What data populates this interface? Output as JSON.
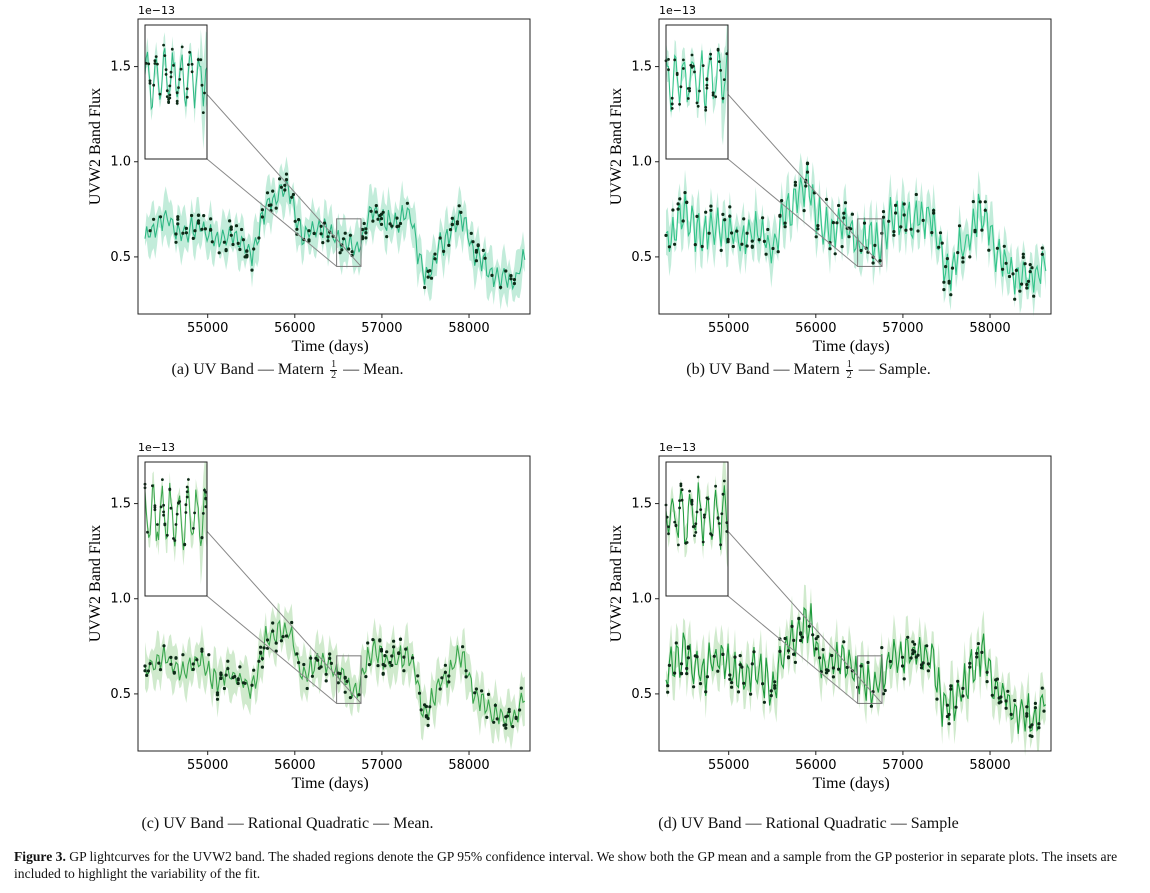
{
  "colors": {
    "mean_line": "#2fb884",
    "band": "#8fdcbb",
    "sample_line": "#33c48a",
    "sample_line_dark": "#1e9a3c",
    "band_rq": "#a9d9a4",
    "points": "#0d2a17"
  },
  "panels": [
    {
      "caption_pre": "(a)  UV Band — Matern",
      "caption_frac_num": "1",
      "caption_frac_den": "2",
      "caption_post": "— Mean.",
      "chart_data": {
        "type": "line",
        "title": "",
        "xlabel": "Time (days)",
        "ylabel": "UVW2 Band Flux",
        "offset_text": "1e−13",
        "xlim": [
          54200,
          58700
        ],
        "ylim": [
          0.2,
          1.75
        ],
        "xticks": [
          55000,
          56000,
          57000,
          58000
        ],
        "yticks": [
          0.5,
          1.0,
          1.5
        ],
        "ytick_labels": [
          "0.5",
          "1.0",
          "1.5"
        ],
        "inset_xlim": [
          56480,
          56760
        ],
        "inset_ylim": [
          0.45,
          0.7
        ],
        "series": [
          {
            "kind": "mean",
            "x": [
              54300,
              54500,
              54700,
              54900,
              55100,
              55300,
              55500,
              55700,
              55900,
              56100,
              56300,
              56500,
              56700,
              56900,
              57100,
              57300,
              57500,
              57700,
              57900,
              58100,
              58300,
              58500,
              58650
            ],
            "y": [
              0.62,
              0.7,
              0.63,
              0.66,
              0.58,
              0.61,
              0.52,
              0.78,
              0.86,
              0.62,
              0.66,
              0.6,
              0.54,
              0.74,
              0.68,
              0.72,
              0.4,
              0.57,
              0.71,
              0.49,
              0.4,
              0.37,
              0.5
            ]
          }
        ]
      }
    },
    {
      "caption_pre": "(b)  UV Band — Matern",
      "caption_frac_num": "1",
      "caption_frac_den": "2",
      "caption_post": "— Sample.",
      "chart_data": {
        "type": "line",
        "title": "",
        "xlabel": "Time (days)",
        "ylabel": "UVW2 Band Flux",
        "offset_text": "1e−13",
        "xlim": [
          54200,
          58700
        ],
        "ylim": [
          0.2,
          1.75
        ],
        "xticks": [
          55000,
          56000,
          57000,
          58000
        ],
        "yticks": [
          0.5,
          1.0,
          1.5
        ],
        "ytick_labels": [
          "0.5",
          "1.0",
          "1.5"
        ],
        "inset_xlim": [
          56480,
          56760
        ],
        "inset_ylim": [
          0.45,
          0.7
        ],
        "series": [
          {
            "kind": "sample",
            "x": [
              54300,
              54500,
              54700,
              54900,
              55100,
              55300,
              55500,
              55700,
              55900,
              56100,
              56300,
              56500,
              56700,
              56900,
              57100,
              57300,
              57500,
              57700,
              57900,
              58100,
              58300,
              58500,
              58650
            ],
            "y": [
              0.6,
              0.72,
              0.62,
              0.68,
              0.6,
              0.63,
              0.55,
              0.76,
              0.88,
              0.64,
              0.68,
              0.58,
              0.56,
              0.72,
              0.7,
              0.7,
              0.43,
              0.55,
              0.73,
              0.5,
              0.42,
              0.38,
              0.5
            ]
          }
        ]
      }
    },
    {
      "caption_pre": "(c)  UV Band — Rational Quadratic — Mean.",
      "caption_frac_num": "",
      "caption_frac_den": "",
      "caption_post": "",
      "chart_data": {
        "type": "line",
        "title": "",
        "xlabel": "Time (days)",
        "ylabel": "UVW2 Band Flux",
        "offset_text": "1e−13",
        "xlim": [
          54200,
          58700
        ],
        "ylim": [
          0.2,
          1.75
        ],
        "xticks": [
          55000,
          56000,
          57000,
          58000
        ],
        "yticks": [
          0.5,
          1.0,
          1.5
        ],
        "ytick_labels": [
          "0.5",
          "1.0",
          "1.5"
        ],
        "inset_xlim": [
          56480,
          56760
        ],
        "inset_ylim": [
          0.45,
          0.7
        ],
        "series": [
          {
            "kind": "mean",
            "x": [
              54300,
              54500,
              54700,
              54900,
              55100,
              55300,
              55500,
              55700,
              55900,
              56100,
              56300,
              56500,
              56700,
              56900,
              57100,
              57300,
              57500,
              57700,
              57900,
              58100,
              58300,
              58500,
              58650
            ],
            "y": [
              0.63,
              0.69,
              0.62,
              0.67,
              0.57,
              0.6,
              0.53,
              0.8,
              0.85,
              0.61,
              0.67,
              0.61,
              0.53,
              0.73,
              0.67,
              0.71,
              0.41,
              0.58,
              0.7,
              0.48,
              0.39,
              0.36,
              0.49
            ]
          }
        ]
      }
    },
    {
      "caption_pre": "(d)  UV Band — Rational Quadratic — Sample",
      "caption_frac_num": "",
      "caption_frac_den": "",
      "caption_post": "",
      "chart_data": {
        "type": "line",
        "title": "",
        "xlabel": "Time (days)",
        "ylabel": "UVW2 Band Flux",
        "offset_text": "1e−13",
        "xlim": [
          54200,
          58700
        ],
        "ylim": [
          0.2,
          1.75
        ],
        "xticks": [
          55000,
          56000,
          57000,
          58000
        ],
        "yticks": [
          0.5,
          1.0,
          1.5
        ],
        "ytick_labels": [
          "0.5",
          "1.0",
          "1.5"
        ],
        "inset_xlim": [
          56480,
          56760
        ],
        "inset_ylim": [
          0.45,
          0.7
        ],
        "series": [
          {
            "kind": "sample",
            "x": [
              54300,
              54500,
              54700,
              54900,
              55100,
              55300,
              55500,
              55700,
              55900,
              56100,
              56300,
              56500,
              56700,
              56900,
              57100,
              57300,
              57500,
              57700,
              57900,
              58100,
              58300,
              58500,
              58650
            ],
            "y": [
              0.61,
              0.71,
              0.61,
              0.69,
              0.59,
              0.62,
              0.54,
              0.77,
              0.87,
              0.63,
              0.69,
              0.59,
              0.55,
              0.73,
              0.71,
              0.69,
              0.42,
              0.56,
              0.72,
              0.51,
              0.41,
              0.37,
              0.49
            ]
          }
        ]
      }
    }
  ],
  "figure_caption": {
    "label": "Figure 3.",
    "text": " GP lightcurves for the UVW2 band. The shaded regions denote the GP 95% confidence interval. We show both the GP mean and a sample from the GP posterior in separate plots. The insets are included to highlight the variability of the fit."
  }
}
